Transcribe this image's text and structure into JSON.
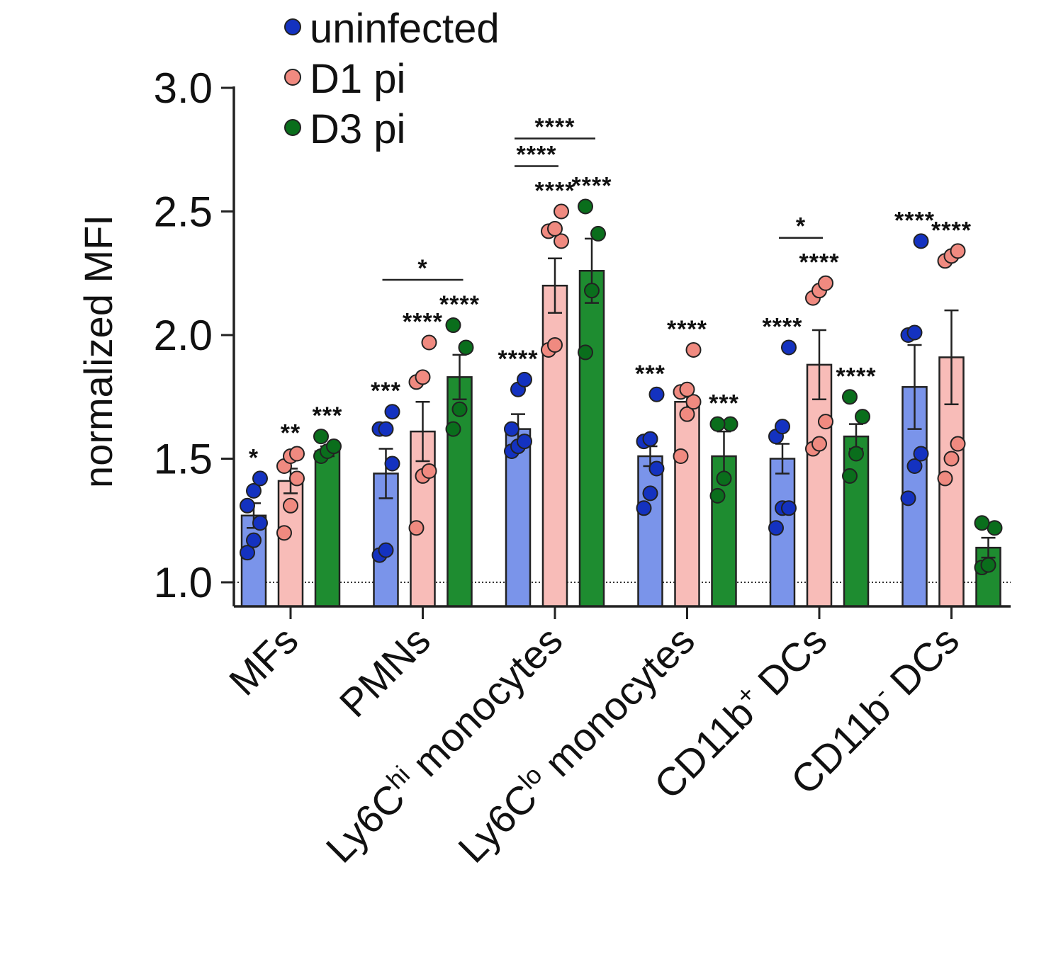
{
  "chart_data": {
    "type": "bar",
    "ylabel": "normalized MFI",
    "ylim": [
      1.0,
      3.0
    ],
    "yticks": [
      "1.0",
      "1.5",
      "2.0",
      "2.5",
      "3.0"
    ],
    "reference_line": 1.0,
    "legend_position": "top-left",
    "categories": [
      {
        "base": "MFs",
        "sup": ""
      },
      {
        "base": "PMNs",
        "sup": ""
      },
      {
        "base": "Ly6C",
        "sup": "hi",
        "tail": " monocytes"
      },
      {
        "base": "Ly6C",
        "sup": "lo",
        "tail": " monocytes"
      },
      {
        "base": "CD11b",
        "sup": "+",
        "tail": " DCs"
      },
      {
        "base": "CD11b",
        "sup": "-",
        "tail": " DCs"
      }
    ],
    "series": [
      {
        "name": "uninfected",
        "bar_color": "#7a94ea",
        "dot_color": "#1432c0",
        "means": [
          1.27,
          1.44,
          1.62,
          1.51,
          1.5,
          1.79
        ],
        "sem": [
          0.05,
          0.1,
          0.06,
          0.04,
          0.06,
          0.17
        ],
        "points": [
          [
            1.12,
            1.17,
            1.24,
            1.31,
            1.37,
            1.42
          ],
          [
            1.11,
            1.13,
            1.48,
            1.62,
            1.62,
            1.69
          ],
          [
            1.53,
            1.55,
            1.57,
            1.62,
            1.78,
            1.82
          ],
          [
            1.3,
            1.36,
            1.46,
            1.57,
            1.58,
            1.76
          ],
          [
            1.22,
            1.3,
            1.3,
            1.59,
            1.63,
            1.95
          ],
          [
            1.34,
            1.47,
            1.52,
            2.0,
            2.01,
            2.38
          ]
        ],
        "significance": [
          "*",
          "***",
          "****",
          "***",
          "****",
          "****"
        ]
      },
      {
        "name": "D1 pi",
        "bar_color": "#f8bcb8",
        "dot_color": "#f08a80",
        "means": [
          1.41,
          1.61,
          2.2,
          1.73,
          1.88,
          1.91
        ],
        "sem": [
          0.05,
          0.12,
          0.11,
          0.05,
          0.14,
          0.19
        ],
        "points": [
          [
            1.2,
            1.31,
            1.42,
            1.47,
            1.51,
            1.52
          ],
          [
            1.22,
            1.43,
            1.45,
            1.81,
            1.83,
            1.97
          ],
          [
            1.94,
            1.96,
            2.38,
            2.42,
            2.43,
            2.5
          ],
          [
            1.51,
            1.68,
            1.73,
            1.77,
            1.78,
            1.94
          ],
          [
            1.54,
            1.56,
            1.65,
            2.15,
            2.18,
            2.21
          ],
          [
            1.42,
            1.5,
            1.56,
            2.3,
            2.32,
            2.34
          ]
        ],
        "significance": [
          "**",
          "****",
          "****",
          "****",
          "****",
          "****"
        ]
      },
      {
        "name": "D3 pi",
        "bar_color": "#1e8c30",
        "dot_color": "#0a6e1c",
        "means": [
          1.53,
          1.83,
          2.26,
          1.51,
          1.59,
          1.14
        ],
        "sem": [
          0.02,
          0.09,
          0.13,
          0.1,
          0.05,
          0.04
        ],
        "points": [
          [
            1.51,
            1.53,
            1.55,
            1.59
          ],
          [
            1.62,
            1.7,
            1.95,
            2.04
          ],
          [
            1.93,
            2.18,
            2.41,
            2.52
          ],
          [
            1.35,
            1.42,
            1.64,
            1.64
          ],
          [
            1.43,
            1.52,
            1.67,
            1.75
          ],
          [
            1.06,
            1.07,
            1.22,
            1.24
          ]
        ],
        "significance": [
          "***",
          "****",
          "****",
          "***",
          "****",
          ""
        ]
      }
    ],
    "comparisons": [
      {
        "category": 1,
        "from": 0,
        "to": 2,
        "label": "*"
      },
      {
        "category": 2,
        "from": 0,
        "to": 1,
        "label": "****"
      },
      {
        "category": 2,
        "from": 0,
        "to": 2,
        "label": "****"
      },
      {
        "category": 4,
        "from": 0,
        "to": 1,
        "label": "*"
      }
    ]
  }
}
